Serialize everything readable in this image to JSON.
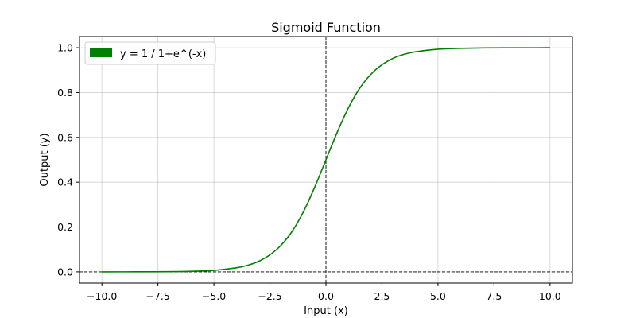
{
  "chart_data": {
    "type": "line",
    "title": "Sigmoid Function",
    "xlabel": "Input (x)",
    "ylabel": "Output (y)",
    "xlim": [
      -11.0,
      11.0
    ],
    "ylim": [
      -0.05,
      1.05
    ],
    "xticks": [
      -10.0,
      -7.5,
      -5.0,
      -2.5,
      0.0,
      2.5,
      5.0,
      7.5,
      10.0
    ],
    "xtick_labels": [
      "−10.0",
      "−7.5",
      "−5.0",
      "−2.5",
      "0.0",
      "2.5",
      "5.0",
      "7.5",
      "10.0"
    ],
    "yticks": [
      0.0,
      0.2,
      0.4,
      0.6,
      0.8,
      1.0
    ],
    "ytick_labels": [
      "0.0",
      "0.2",
      "0.4",
      "0.6",
      "0.8",
      "1.0"
    ],
    "grid": true,
    "legend_position": "top-left",
    "reference_lines": {
      "vertical_x": 0,
      "horizontal_y": 0,
      "style": "dashed",
      "color": "#000000"
    },
    "series": [
      {
        "name": "y = 1 / 1+e^(-x)",
        "color": "#008000",
        "x": [
          -10,
          -9,
          -8,
          -7,
          -6,
          -5,
          -4,
          -3.5,
          -3,
          -2.5,
          -2,
          -1.5,
          -1,
          -0.5,
          0,
          0.5,
          1,
          1.5,
          2,
          2.5,
          3,
          3.5,
          4,
          5,
          6,
          7,
          8,
          9,
          10
        ],
        "y": [
          5e-05,
          0.0001,
          0.0003,
          0.0009,
          0.0025,
          0.0067,
          0.018,
          0.029,
          0.047,
          0.076,
          0.119,
          0.182,
          0.269,
          0.378,
          0.5,
          0.622,
          0.731,
          0.818,
          0.881,
          0.924,
          0.953,
          0.971,
          0.982,
          0.9933,
          0.9975,
          0.9991,
          0.9997,
          0.9999,
          0.99995
        ]
      }
    ]
  }
}
